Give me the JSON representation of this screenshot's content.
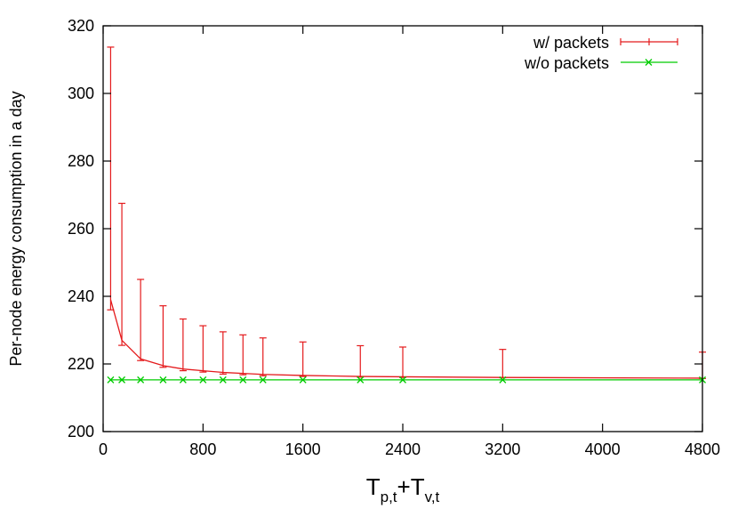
{
  "chart_data": {
    "type": "line",
    "xlabel": {
      "main1": "T",
      "sub1": "p,t",
      "plus": "+",
      "main2": "T",
      "sub2": "v,t"
    },
    "ylabel": "Per-node energy consumption in a day",
    "xlim": [
      0,
      4800
    ],
    "ylim": [
      200,
      320
    ],
    "xticks": [
      0,
      800,
      1600,
      2400,
      3200,
      4000,
      4800
    ],
    "yticks": [
      200,
      220,
      240,
      260,
      280,
      300,
      320
    ],
    "legend_position": "top-right",
    "series": [
      {
        "name": "w/ packets",
        "color": "#e41a1c",
        "marker": "errorbar",
        "x": [
          60,
          150,
          300,
          480,
          640,
          800,
          960,
          1120,
          1280,
          1600,
          2060,
          2400,
          3200,
          4800
        ],
        "y": [
          239.0,
          227.0,
          221.5,
          219.5,
          218.5,
          218.0,
          217.5,
          217.2,
          216.9,
          216.6,
          216.3,
          216.2,
          216.0,
          215.8
        ],
        "yerr_low": [
          236.0,
          225.5,
          221.0,
          219.0,
          218.0,
          217.6,
          217.0,
          216.8,
          216.5,
          216.3,
          216.1,
          216.0,
          215.9,
          215.7
        ],
        "yerr_high": [
          313.7,
          267.5,
          245.0,
          237.2,
          233.3,
          231.3,
          229.5,
          228.6,
          227.7,
          226.5,
          225.4,
          225.0,
          224.3,
          223.5
        ]
      },
      {
        "name": "w/o packets",
        "color": "#00cc00",
        "marker": "x",
        "x": [
          60,
          150,
          300,
          480,
          640,
          800,
          960,
          1120,
          1280,
          1600,
          2060,
          2400,
          3200,
          4800
        ],
        "y": [
          215.3,
          215.3,
          215.3,
          215.3,
          215.3,
          215.3,
          215.3,
          215.3,
          215.3,
          215.3,
          215.3,
          215.3,
          215.3,
          215.3
        ]
      }
    ]
  }
}
